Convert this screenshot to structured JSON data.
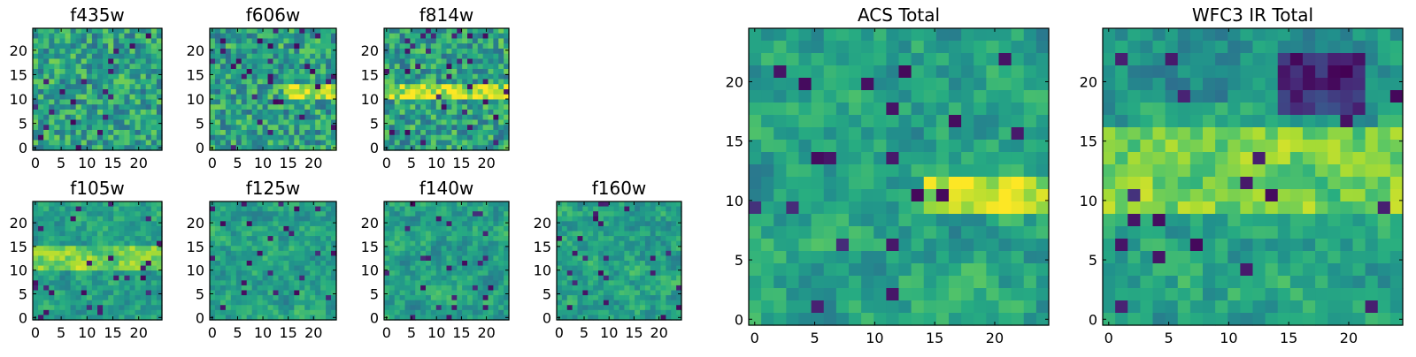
{
  "chart_data": [
    {
      "type": "heatmap",
      "title": "f435w",
      "grid": false,
      "colormap": "viridis",
      "xlim": [
        0,
        24
      ],
      "ylim": [
        0,
        24
      ],
      "xticks": [
        "0",
        "5",
        "10",
        "15",
        "20"
      ],
      "yticks": [
        "0",
        "5",
        "10",
        "15",
        "20"
      ],
      "map_size": 24,
      "seed": 435,
      "features": []
    },
    {
      "type": "heatmap",
      "title": "f606w",
      "grid": false,
      "colormap": "viridis",
      "xlim": [
        0,
        24
      ],
      "ylim": [
        0,
        24
      ],
      "xticks": [
        "0",
        "5",
        "10",
        "15",
        "20"
      ],
      "yticks": [
        "0",
        "5",
        "10",
        "15",
        "20"
      ],
      "map_size": 24,
      "seed": 606,
      "features": [
        "bright horizontal band near y=11 from x=14 to x=24"
      ]
    },
    {
      "type": "heatmap",
      "title": "f814w",
      "grid": false,
      "colormap": "viridis",
      "xlim": [
        0,
        24
      ],
      "ylim": [
        0,
        24
      ],
      "xticks": [
        "0",
        "5",
        "10",
        "15",
        "20"
      ],
      "yticks": [
        "0",
        "5",
        "10",
        "15",
        "20"
      ],
      "map_size": 24,
      "seed": 814,
      "features": [
        "bright horizontal band near y=11 across most of the image"
      ]
    },
    {
      "type": "heatmap",
      "title": "f105w",
      "grid": false,
      "colormap": "viridis",
      "xlim": [
        0,
        24
      ],
      "ylim": [
        0,
        24
      ],
      "xticks": [
        "0",
        "5",
        "10",
        "15",
        "20"
      ],
      "yticks": [
        "0",
        "5",
        "10",
        "15",
        "20"
      ],
      "map_size": 24,
      "seed": 105,
      "features": [
        "broad bright region around y=12"
      ]
    },
    {
      "type": "heatmap",
      "title": "f125w",
      "grid": false,
      "colormap": "viridis",
      "xlim": [
        0,
        24
      ],
      "ylim": [
        0,
        24
      ],
      "xticks": [
        "0",
        "5",
        "10",
        "15",
        "20"
      ],
      "yticks": [
        "0",
        "5",
        "10",
        "15",
        "20"
      ],
      "map_size": 24,
      "seed": 125,
      "features": []
    },
    {
      "type": "heatmap",
      "title": "f140w",
      "grid": false,
      "colormap": "viridis",
      "xlim": [
        0,
        24
      ],
      "ylim": [
        0,
        24
      ],
      "xticks": [
        "0",
        "5",
        "10",
        "15",
        "20"
      ],
      "yticks": [
        "0",
        "5",
        "10",
        "15",
        "20"
      ],
      "map_size": 24,
      "seed": 140,
      "features": []
    },
    {
      "type": "heatmap",
      "title": "f160w",
      "grid": false,
      "colormap": "viridis",
      "xlim": [
        0,
        24
      ],
      "ylim": [
        0,
        24
      ],
      "xticks": [
        "0",
        "5",
        "10",
        "15",
        "20"
      ],
      "yticks": [
        "0",
        "5",
        "10",
        "15",
        "20"
      ],
      "map_size": 24,
      "seed": 160,
      "features": []
    },
    {
      "type": "heatmap",
      "title": "ACS Total",
      "grid": false,
      "colormap": "viridis",
      "xlim": [
        0,
        24
      ],
      "ylim": [
        0,
        24
      ],
      "xticks": [
        "0",
        "5",
        "10",
        "15",
        "20"
      ],
      "yticks": [
        "0",
        "5",
        "10",
        "15",
        "20"
      ],
      "map_size": 24,
      "seed": 1001,
      "features": [
        "bright region near y=10 to 11 from x=14 to x=24"
      ]
    },
    {
      "type": "heatmap",
      "title": "WFC3 IR Total",
      "grid": false,
      "colormap": "viridis",
      "xlim": [
        0,
        24
      ],
      "ylim": [
        0,
        24
      ],
      "xticks": [
        "0",
        "5",
        "10",
        "15",
        "20"
      ],
      "yticks": [
        "0",
        "5",
        "10",
        "15",
        "20"
      ],
      "map_size": 24,
      "seed": 1002,
      "features": [
        "bright band from y=9 to y=15",
        "dark patch near x=15 to 20, y=17 to 21"
      ]
    }
  ]
}
